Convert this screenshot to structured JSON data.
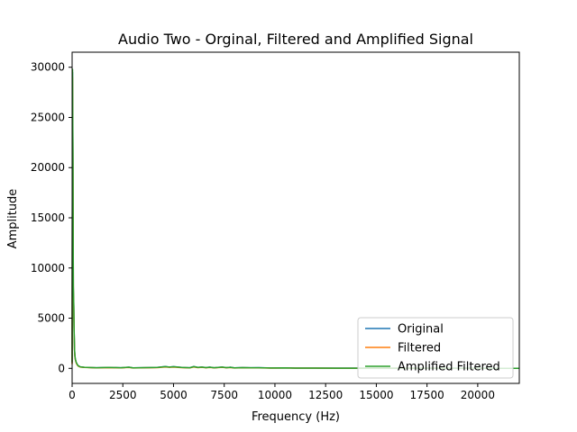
{
  "chart_data": {
    "type": "line",
    "title": "Audio Two - Orginal, Filtered and Amplified Signal",
    "xlabel": "Frequency (Hz)",
    "ylabel": "Amplitude",
    "xlim": [
      0,
      22050
    ],
    "ylim": [
      -1500,
      31500
    ],
    "xticks": [
      0,
      2500,
      5000,
      7500,
      10000,
      12500,
      15000,
      17500,
      20000
    ],
    "yticks": [
      0,
      5000,
      10000,
      15000,
      20000,
      25000,
      30000
    ],
    "grid": false,
    "legend": "lower-right",
    "series": [
      {
        "name": "Original",
        "color": "#1f77b4",
        "x": [
          0,
          20,
          40,
          60,
          80,
          100,
          120,
          140,
          160,
          200,
          250,
          300,
          400,
          600,
          900,
          1200,
          1800,
          2400,
          2800,
          3000,
          3600,
          4200,
          4600,
          4800,
          5000,
          5400,
          5800,
          6000,
          6200,
          6400,
          6600,
          6800,
          7000,
          7400,
          7600,
          7800,
          8000,
          8400,
          8800,
          9200,
          9800,
          10500,
          11000,
          12000,
          13000,
          14000,
          15000,
          16000,
          17000,
          18000,
          19000,
          20000,
          21000,
          22050
        ],
        "y": [
          500,
          29500,
          21000,
          8000,
          6400,
          3500,
          1800,
          1200,
          900,
          600,
          400,
          250,
          150,
          100,
          80,
          60,
          90,
          60,
          110,
          50,
          70,
          90,
          180,
          120,
          170,
          90,
          60,
          180,
          90,
          130,
          80,
          120,
          60,
          130,
          70,
          110,
          50,
          80,
          60,
          70,
          40,
          50,
          30,
          30,
          20,
          20,
          15,
          15,
          10,
          10,
          8,
          8,
          5,
          5
        ]
      },
      {
        "name": "Filtered",
        "color": "#ff7f0e",
        "x": [
          0,
          20,
          40,
          60,
          80,
          100,
          120,
          140,
          160,
          200,
          250,
          300,
          400,
          600,
          900,
          1200,
          1800,
          2400,
          2800,
          3000,
          3600,
          4200,
          4600,
          4800,
          5000,
          5400,
          5800,
          6000,
          6200,
          6400,
          6600,
          6800,
          7000,
          7400,
          7600,
          7800,
          8000,
          8400,
          8800,
          9200,
          9800,
          10500,
          11000,
          12000,
          13000,
          14000,
          15000,
          16000,
          17000,
          18000,
          19000,
          20000,
          21000,
          22050
        ],
        "y": [
          400,
          29000,
          20500,
          7800,
          6200,
          3400,
          1700,
          1100,
          850,
          550,
          350,
          220,
          130,
          90,
          70,
          50,
          70,
          50,
          90,
          40,
          55,
          70,
          140,
          100,
          130,
          70,
          50,
          140,
          70,
          100,
          60,
          90,
          50,
          100,
          55,
          80,
          40,
          60,
          45,
          50,
          30,
          35,
          20,
          20,
          15,
          15,
          10,
          10,
          8,
          8,
          6,
          6,
          4,
          4
        ]
      },
      {
        "name": "Amplified Filtered",
        "color": "#2ca02c",
        "x": [
          0,
          20,
          40,
          60,
          80,
          100,
          120,
          140,
          160,
          200,
          250,
          300,
          400,
          600,
          900,
          1200,
          1800,
          2400,
          2800,
          3000,
          3600,
          4200,
          4600,
          4800,
          5000,
          5400,
          5800,
          6000,
          6200,
          6400,
          6600,
          6800,
          7000,
          7400,
          7600,
          7800,
          8000,
          8400,
          8800,
          9200,
          9800,
          10500,
          11000,
          12000,
          13000,
          14000,
          15000,
          16000,
          17000,
          18000,
          19000,
          20000,
          21000,
          22050
        ],
        "y": [
          600,
          29800,
          21700,
          8200,
          6500,
          3600,
          1800,
          1200,
          900,
          600,
          400,
          250,
          150,
          100,
          80,
          60,
          90,
          60,
          110,
          50,
          70,
          90,
          170,
          120,
          160,
          90,
          60,
          170,
          90,
          120,
          70,
          110,
          60,
          120,
          70,
          100,
          50,
          70,
          55,
          60,
          35,
          45,
          25,
          25,
          18,
          18,
          12,
          12,
          10,
          10,
          8,
          8,
          5,
          5
        ]
      }
    ]
  }
}
